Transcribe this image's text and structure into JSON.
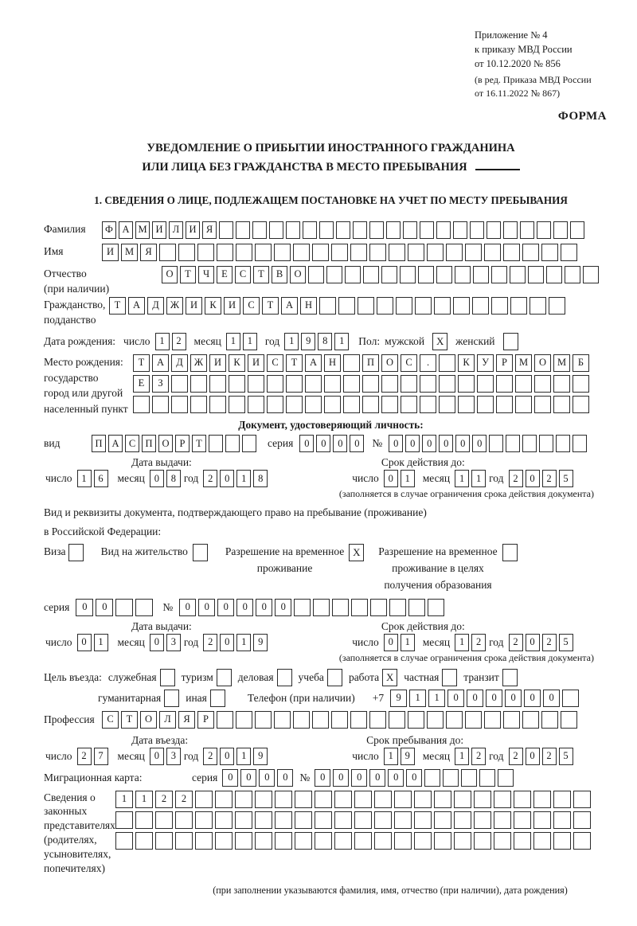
{
  "header": {
    "annex_line1": "Приложение № 4",
    "annex_line2": "к приказу МВД России",
    "annex_line3": "от 10.12.2020 № 856",
    "annex_line4": "(в ред. Приказа МВД России",
    "annex_line5": "от 16.11.2022 № 867)",
    "form_label": "ФОРМА"
  },
  "title": {
    "line1": "УВЕДОМЛЕНИЕ О ПРИБЫТИИ ИНОСТРАННОГО ГРАЖДАНИНА",
    "line2": "ИЛИ ЛИЦА БЕЗ ГРАЖДАНСТВА В МЕСТО ПРЕБЫВАНИЯ"
  },
  "section1_heading": "1. СВЕДЕНИЯ О ЛИЦЕ, ПОДЛЕЖАЩЕМ ПОСТАНОВКЕ НА УЧЕТ ПО МЕСТУ ПРЕБЫВАНИЯ",
  "labels": {
    "day": "число",
    "month": "месяц",
    "year": "год",
    "series": "серия",
    "no": "№",
    "issue_date": "Дата выдачи:",
    "valid_until": "Срок действия до:",
    "entry_date": "Дата въезда:",
    "stay_until": "Срок пребывания до:",
    "validity_note": "(заполняется в случае ограничения срока действия документа)"
  },
  "person": {
    "surname": {
      "label": "Фамилия",
      "cells": {
        "value": "ФАМИЛИЯ",
        "total": 29
      }
    },
    "name": {
      "label": "Имя",
      "cells": {
        "value": "ИМЯ",
        "total": 25
      }
    },
    "patronymic": {
      "label": "Отчество\n(при наличии)",
      "cells": {
        "value": "ОТЧЕСТВО",
        "total": 24
      }
    },
    "citizenship": {
      "label": "Гражданство,\nподданство",
      "cells": {
        "value": "ТАДЖИКИСТАН",
        "total": 24
      }
    },
    "birth_date": {
      "label": "Дата рождения:",
      "day": {
        "value": "12",
        "total": 2
      },
      "month": {
        "value": "11",
        "total": 2
      },
      "year": {
        "value": "1981",
        "total": 4
      }
    },
    "sex": {
      "label": "Пол:",
      "male_label": "мужской",
      "male": "X",
      "female_label": "женский",
      "female": ""
    },
    "birth_place": {
      "label": "Место рождения:\nгосударство\nгород или другой\nнаселенный пункт",
      "row1": {
        "value": "ТАДЖИКИСТАН ПОС. КУРМОМБ",
        "total": 24
      },
      "row2": {
        "value": "ЕЗ",
        "total": 24
      },
      "row3": {
        "value": "",
        "total": 24
      }
    }
  },
  "identity_doc": {
    "heading": "Документ, удостоверяющий личность:",
    "kind_label": "вид",
    "kind": {
      "value": "ПАСПОРТ",
      "total": 10
    },
    "series": {
      "value": "0000",
      "total": 4
    },
    "number": {
      "value": "000000",
      "total": 12
    },
    "issue": {
      "day": {
        "value": "16",
        "total": 2
      },
      "month": {
        "value": "08",
        "total": 2
      },
      "year": {
        "value": "2018",
        "total": 4
      }
    },
    "expiry": {
      "day": {
        "value": "01",
        "total": 2
      },
      "month": {
        "value": "11",
        "total": 2
      },
      "year": {
        "value": "2025",
        "total": 4
      }
    }
  },
  "stay_doc": {
    "intro_line1": "Вид и реквизиты документа, подтверждающего право на пребывание (проживание)",
    "intro_line2": "в Российской Федерации:",
    "options": [
      {
        "label": "Виза",
        "checked": ""
      },
      {
        "label": "Вид на жительство",
        "checked": ""
      },
      {
        "label": "Разрешение на временное\nпроживание",
        "checked": "X"
      },
      {
        "label": "Разрешение на временное\nпроживание в целях\nполучения образования",
        "checked": ""
      }
    ],
    "series": {
      "value": "00",
      "total": 4
    },
    "number": {
      "value": "000000",
      "total": 14
    },
    "issue": {
      "day": {
        "value": "01",
        "total": 2
      },
      "month": {
        "value": "03",
        "total": 2
      },
      "year": {
        "value": "2019",
        "total": 4
      }
    },
    "expiry": {
      "day": {
        "value": "01",
        "total": 2
      },
      "month": {
        "value": "12",
        "total": 2
      },
      "year": {
        "value": "2025",
        "total": 4
      }
    }
  },
  "visit": {
    "purpose_label": "Цель въезда:",
    "options_line1": [
      {
        "label": "служебная",
        "checked": ""
      },
      {
        "label": "туризм",
        "checked": ""
      },
      {
        "label": "деловая",
        "checked": ""
      },
      {
        "label": "учеба",
        "checked": ""
      },
      {
        "label": "работа",
        "checked": "X"
      },
      {
        "label": "частная",
        "checked": ""
      },
      {
        "label": "транзит",
        "checked": ""
      }
    ],
    "options_line2": [
      {
        "label": "гуманитарная",
        "checked": ""
      },
      {
        "label": "иная",
        "checked": ""
      }
    ],
    "phone_label": "Телефон (при наличии)",
    "phone_prefix": "+7",
    "phone": {
      "value": "911000000",
      "total": 10
    },
    "profession_label": "Профессия",
    "profession": {
      "value": "СТОЛЯР",
      "total": 25
    },
    "entry": {
      "day": {
        "value": "27",
        "total": 2
      },
      "month": {
        "value": "03",
        "total": 2
      },
      "year": {
        "value": "2019",
        "total": 4
      }
    },
    "stay_until": {
      "day": {
        "value": "19",
        "total": 2
      },
      "month": {
        "value": "12",
        "total": 2
      },
      "year": {
        "value": "2025",
        "total": 4
      }
    }
  },
  "migration_card": {
    "label": "Миграционная карта:",
    "series": {
      "value": "0000",
      "total": 4
    },
    "number": {
      "value": "000000",
      "total": 11
    }
  },
  "representatives": {
    "label": "Сведения о\nзаконных\nпредставителях\n(родителях,\nусыновителях,\nпопечителях)",
    "row1": {
      "value": "1122",
      "total": 24
    },
    "row2": {
      "value": "",
      "total": 24
    },
    "row3": {
      "value": "",
      "total": 24
    },
    "note": "(при заполнении указываются фамилия, имя, отчество (при наличии), дата рождения)"
  }
}
